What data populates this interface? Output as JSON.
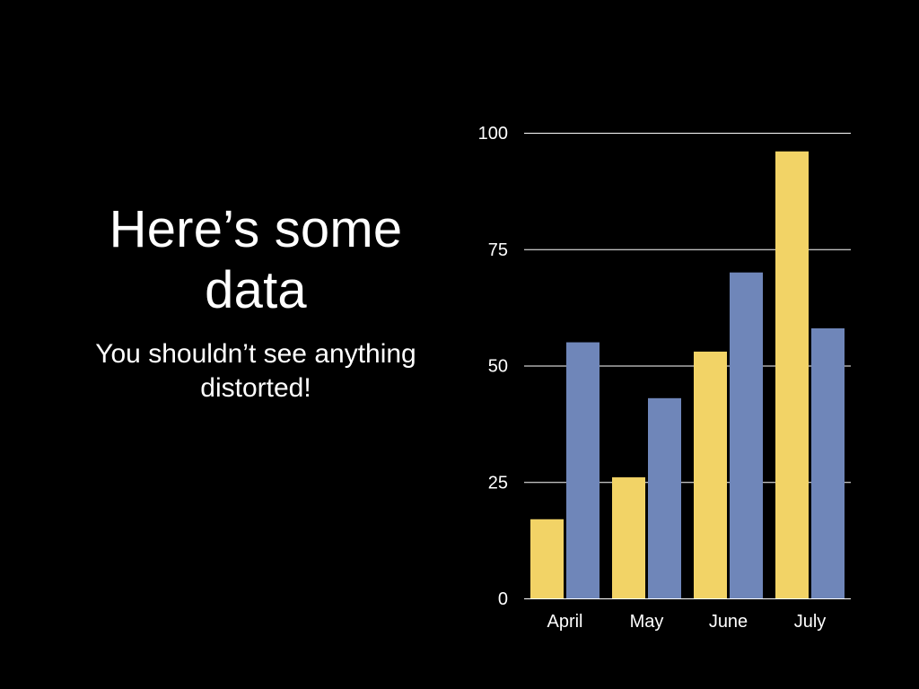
{
  "slide": {
    "title": "Here’s some data",
    "subtitle": "You shouldn’t see anything distorted!"
  },
  "chart_data": {
    "type": "bar",
    "categories": [
      "April",
      "May",
      "June",
      "July"
    ],
    "series": [
      {
        "values": [
          17,
          26,
          53,
          96
        ],
        "color": "#f2d366"
      },
      {
        "values": [
          55,
          43,
          70,
          58
        ],
        "color": "#6f86b9"
      }
    ],
    "yticks": [
      0,
      25,
      50,
      75,
      100
    ],
    "ylim": [
      0,
      100
    ],
    "grid": true,
    "legend": "none",
    "title": "",
    "xlabel": "",
    "ylabel": ""
  }
}
